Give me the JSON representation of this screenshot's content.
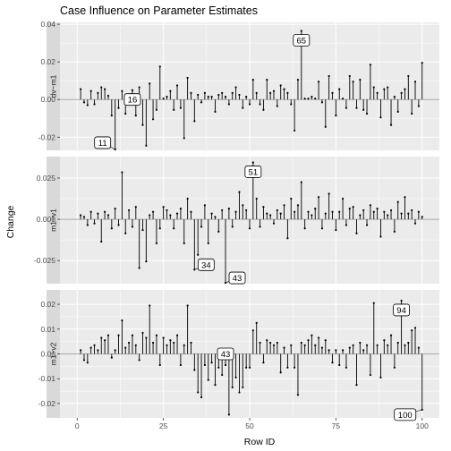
{
  "chart_data": {
    "type": "line",
    "title": "Case Influence on Parameter Estimates",
    "xlabel": "Row ID",
    "ylabel": "Change",
    "x_ticks": [
      "0",
      "25",
      "50",
      "75",
      "100"
    ],
    "x_tick_values": [
      0,
      25,
      50,
      75,
      100
    ],
    "xlim": [
      -5,
      105
    ],
    "background": "#ebebeb",
    "gridline_color": "#ffffff",
    "strip_color": "#d9d9d9",
    "zero_line_color": "#a6a6a6",
    "panels": [
      {
        "strip": "dv~m1",
        "ylim": [
          -0.027,
          0.041
        ],
        "y_ticks": [
          "-0.02",
          "0.00",
          "0.02",
          "0.04"
        ],
        "y_tick_values": [
          -0.02,
          0.0,
          0.02,
          0.04
        ],
        "values": [
          0.0055,
          -0.0015,
          -0.003,
          0.0045,
          -0.0025,
          0.0035,
          0.0065,
          0.0055,
          0.002,
          -0.0085,
          -0.0265,
          -0.0045,
          0.0045,
          -0.0075,
          0.0025,
          0.005,
          -0.0085,
          0.0065,
          -0.0135,
          -0.0245,
          0.0085,
          -0.0105,
          -0.0055,
          0.0175,
          0.0005,
          0.0015,
          0.0045,
          -0.0055,
          0.0075,
          -0.0045,
          -0.0205,
          0.0115,
          0.0035,
          -0.0115,
          0.0025,
          -0.0015,
          0.0035,
          0.0015,
          0.0015,
          -0.0065,
          0.0025,
          0.0035,
          0.0015,
          -0.0025,
          0.0035,
          0.0065,
          0.0025,
          -0.0045,
          0.0015,
          -0.0025,
          0.0105,
          0.0035,
          -0.0025,
          -0.0055,
          0.0105,
          0.0035,
          0.0045,
          -0.0035,
          0.0075,
          0.0055,
          0.0035,
          -0.0025,
          -0.0165,
          0.0105,
          0.0365,
          0.0005,
          0.0005,
          0.0015,
          0.0005,
          0.0095,
          -0.0015,
          -0.0145,
          0.0125,
          0.0035,
          -0.0085,
          0.0055,
          0.0005,
          -0.0045,
          0.0125,
          0.0095,
          -0.0045,
          0.0105,
          -0.0055,
          -0.0075,
          0.0185,
          0.0065,
          0.0035,
          -0.0095,
          0.0055,
          0.0065,
          -0.0135,
          0.0015,
          -0.0065,
          0.0035,
          0.0055,
          0.0125,
          -0.0075,
          0.0095,
          -0.0035,
          0.0195
        ],
        "labels": [
          {
            "id": "65",
            "index": 64
          },
          {
            "id": "11",
            "index": 10
          },
          {
            "id": "16",
            "index": 15
          }
        ]
      },
      {
        "strip": "m1~v1",
        "ylim": [
          -0.039,
          0.038
        ],
        "y_ticks": [
          "-0.025",
          "0.000",
          "0.025"
        ],
        "y_tick_values": [
          -0.025,
          0.0,
          0.025
        ],
        "values": [
          0.0025,
          0.0015,
          -0.0035,
          0.0045,
          -0.0025,
          0.0035,
          -0.0135,
          0.0045,
          0.0025,
          -0.0055,
          0.0065,
          -0.0035,
          0.0285,
          -0.0085,
          0.0055,
          -0.0045,
          0.0075,
          -0.0295,
          -0.0065,
          -0.0255,
          0.0025,
          0.0045,
          -0.0145,
          -0.0055,
          0.0075,
          0.0055,
          0.0025,
          -0.0055,
          0.0035,
          0.0065,
          -0.0145,
          0.0125,
          0.0045,
          -0.0305,
          -0.0215,
          -0.0045,
          0.0085,
          -0.0145,
          0.0035,
          0.0015,
          -0.0075,
          0.0055,
          -0.0385,
          0.0065,
          -0.0045,
          0.0045,
          0.0165,
          0.0085,
          0.0055,
          -0.0055,
          0.0345,
          0.0125,
          -0.0045,
          0.0075,
          0.0035,
          0.0025,
          -0.0025,
          0.0055,
          0.0035,
          0.0085,
          -0.0115,
          0.0125,
          0.0045,
          0.0085,
          0.0225,
          -0.0055,
          0.0045,
          0.0025,
          0.0065,
          0.0135,
          -0.0055,
          0.0035,
          0.0155,
          0.0045,
          -0.0065,
          0.0045,
          0.0125,
          -0.0035,
          0.0065,
          0.0075,
          -0.0085,
          0.0025,
          0.0055,
          -0.0035,
          0.0085,
          0.0045,
          0.0065,
          -0.0105,
          0.0045,
          0.0025,
          0.0055,
          -0.0075,
          0.0105,
          0.0035,
          0.0135,
          0.0035,
          0.0055,
          -0.0025,
          0.0045,
          0.0015
        ],
        "labels": [
          {
            "id": "51",
            "index": 50
          },
          {
            "id": "34",
            "index": 33
          },
          {
            "id": "43",
            "index": 42
          }
        ]
      },
      {
        "strip": "m1~v2",
        "ylim": [
          -0.0258,
          0.0258
        ],
        "y_ticks": [
          "-0.02",
          "-0.01",
          "0.00",
          "0.01",
          "0.02"
        ],
        "y_tick_values": [
          -0.02,
          -0.01,
          0.0,
          0.01,
          0.02
        ],
        "values": [
          0.0015,
          -0.0025,
          -0.0035,
          0.0025,
          0.0035,
          0.0015,
          0.0065,
          0.0055,
          0.0075,
          -0.0015,
          0.0015,
          0.0075,
          0.0135,
          0.0025,
          0.0045,
          0.0075,
          0.0035,
          -0.0025,
          0.0085,
          0.0065,
          0.0195,
          0.0045,
          0.0075,
          -0.0045,
          0.0065,
          0.0035,
          0.0055,
          0.0045,
          0.0075,
          -0.0045,
          0.0035,
          0.0195,
          0.0045,
          -0.0065,
          -0.0155,
          -0.0175,
          -0.0045,
          -0.0105,
          -0.0035,
          -0.0125,
          -0.0055,
          -0.0085,
          -0.0045,
          -0.0245,
          -0.0135,
          -0.0095,
          -0.0155,
          -0.0135,
          -0.0055,
          -0.0055,
          0.0095,
          0.0125,
          0.0045,
          -0.0035,
          0.0055,
          0.0045,
          0.0035,
          0.0045,
          -0.0075,
          0.0025,
          -0.0055,
          0.0035,
          -0.0055,
          -0.0165,
          0.0045,
          0.0035,
          0.0055,
          0.0075,
          0.0035,
          0.0065,
          0.0025,
          0.0055,
          0.0015,
          -0.0035,
          0.0015,
          -0.0045,
          0.0015,
          -0.0055,
          0.0025,
          0.0035,
          -0.0125,
          0.0045,
          0.0015,
          0.0035,
          -0.0085,
          0.0205,
          0.0035,
          -0.0095,
          0.0055,
          0.0035,
          0.0075,
          -0.0055,
          0.0045,
          0.0215,
          0.0035,
          0.0045,
          0.0095,
          0.0105,
          0.0025,
          -0.0225
        ],
        "labels": [
          {
            "id": "94",
            "index": 93
          },
          {
            "id": "43",
            "index": 42
          },
          {
            "id": "100",
            "index": 99
          }
        ]
      }
    ]
  }
}
